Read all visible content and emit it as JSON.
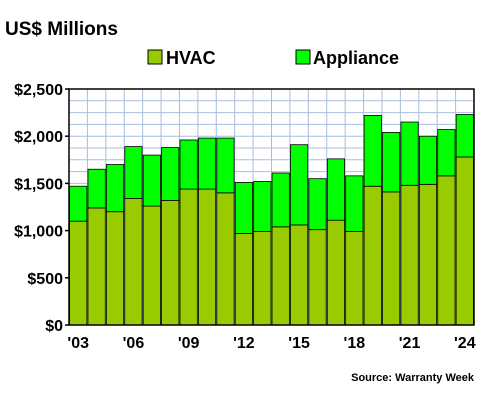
{
  "chart_data": {
    "type": "bar",
    "stacked": true,
    "title": "US$ Millions",
    "source": "Source: Warranty Week",
    "years": [
      "2003",
      "2004",
      "2005",
      "2006",
      "2007",
      "2008",
      "2009",
      "2010",
      "2011",
      "2012",
      "2013",
      "2014",
      "2015",
      "2016",
      "2017",
      "2018",
      "2019",
      "2020",
      "2021",
      "2022",
      "2023",
      "2024"
    ],
    "xtick_labels": [
      "'03",
      "'06",
      "'09",
      "'12",
      "'15",
      "'18",
      "'21",
      "'24"
    ],
    "ytick_labels": [
      "$0",
      "$500",
      "$1,000",
      "$1,500",
      "$2,000",
      "$2,500"
    ],
    "ylim": [
      0,
      2500
    ],
    "grid": true,
    "legend_position": "top",
    "series": [
      {
        "name": "HVAC",
        "color": "#99cc00",
        "values": [
          1100,
          1240,
          1200,
          1340,
          1260,
          1320,
          1440,
          1440,
          1400,
          970,
          990,
          1040,
          1060,
          1010,
          1110,
          990,
          1470,
          1410,
          1480,
          1490,
          1580,
          1780
        ]
      },
      {
        "name": "Appliance",
        "color": "#00ff00",
        "values": [
          370,
          410,
          500,
          550,
          540,
          560,
          520,
          540,
          580,
          540,
          530,
          570,
          850,
          540,
          650,
          590,
          750,
          630,
          670,
          510,
          490,
          450
        ]
      }
    ]
  }
}
